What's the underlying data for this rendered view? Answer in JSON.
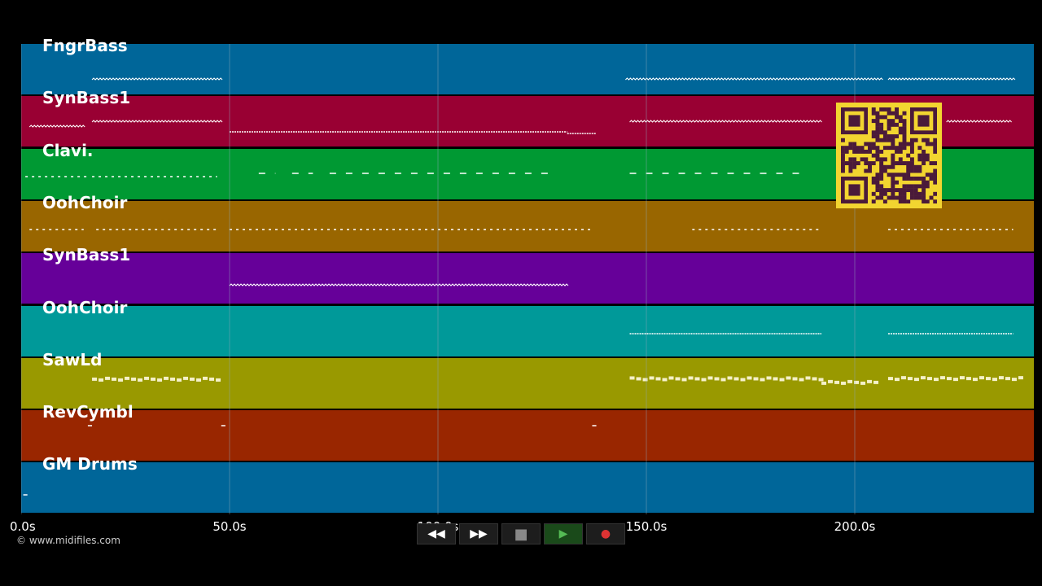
{
  "tracks": [
    {
      "name": "FngrBass",
      "color": "#006699"
    },
    {
      "name": "SynBass1",
      "color": "#990033"
    },
    {
      "name": "Clavi.",
      "color": "#009933"
    },
    {
      "name": "OohChoir",
      "color": "#996600"
    },
    {
      "name": "SynBass1",
      "color": "#660099"
    },
    {
      "name": "OohChoir",
      "color": "#009999"
    },
    {
      "name": "SawLd",
      "color": "#999900"
    },
    {
      "name": "RevCymbl",
      "color": "#992600"
    },
    {
      "name": "GM Drums",
      "color": "#006699"
    }
  ],
  "timeline": {
    "ticks": [
      "0.0s",
      "50.0s",
      "100.0s",
      "150.0s",
      "200.0s"
    ]
  },
  "copyright": "© www.midifiles.com",
  "transport": {
    "buttons": [
      {
        "name": "rewind-button",
        "icon": "rewind-icon",
        "glyph": "◀◀"
      },
      {
        "name": "fast-forward-button",
        "icon": "fast-forward-icon",
        "glyph": "▶▶"
      },
      {
        "name": "stop-button",
        "icon": "stop-icon",
        "glyph": "■"
      },
      {
        "name": "play-button",
        "icon": "play-icon",
        "glyph": "▶"
      },
      {
        "name": "record-button",
        "icon": "record-icon",
        "glyph": "●"
      }
    ]
  },
  "colors": {
    "background": "#000000",
    "note": "#ffffff",
    "gridline": "#8fa8b8",
    "qr_background": "#f2d530",
    "qr_modules": "#4a1a3a"
  }
}
